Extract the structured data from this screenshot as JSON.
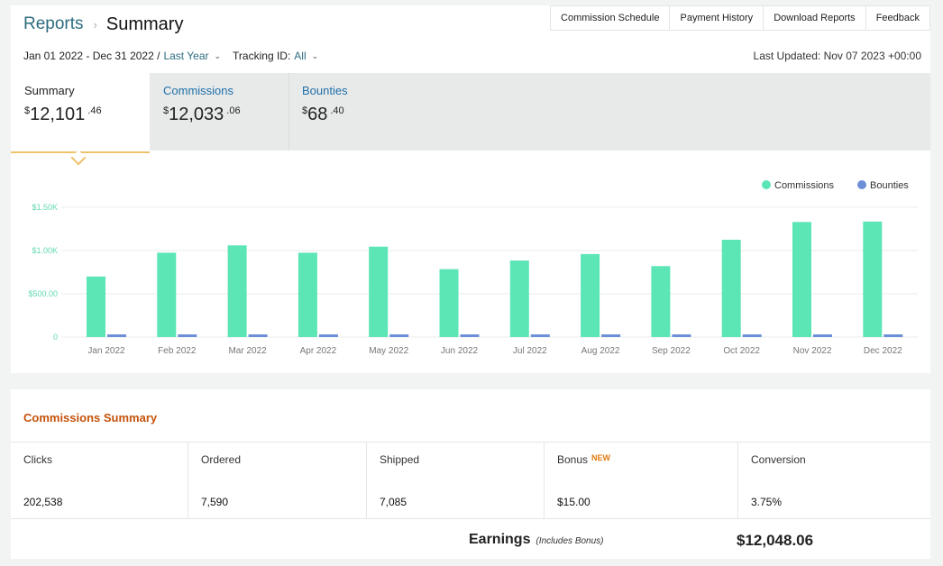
{
  "breadcrumb": {
    "parent": "Reports",
    "separator": "›",
    "current": "Summary"
  },
  "toolbar": {
    "buttons": [
      "Commission Schedule",
      "Payment History",
      "Download Reports",
      "Feedback"
    ]
  },
  "filters": {
    "date_range": "Jan 01 2022 - Dec 31 2022 /",
    "period": "Last Year",
    "tracking_label": "Tracking ID:",
    "tracking_value": "All"
  },
  "last_updated": "Last Updated: Nov 07 2023 +00:00",
  "tabs": [
    {
      "title": "Summary",
      "amount_major": "12,101",
      "amount_minor": ".46",
      "currency": "$",
      "active": true
    },
    {
      "title": "Commissions",
      "amount_major": "12,033",
      "amount_minor": ".06",
      "currency": "$",
      "active": false
    },
    {
      "title": "Bounties",
      "amount_major": "68",
      "amount_minor": ".40",
      "currency": "$",
      "active": false
    }
  ],
  "chart_data": {
    "type": "bar",
    "categories": [
      "Jan 2022",
      "Feb 2022",
      "Mar 2022",
      "Apr 2022",
      "May 2022",
      "Jun 2022",
      "Jul 2022",
      "Aug 2022",
      "Sep 2022",
      "Oct 2022",
      "Nov 2022",
      "Dec 2022"
    ],
    "series": [
      {
        "name": "Commissions",
        "color": "#5ce6b6",
        "values": [
          700,
          975,
          1060,
          975,
          1045,
          785,
          885,
          960,
          820,
          1125,
          1330,
          1335
        ]
      },
      {
        "name": "Bounties",
        "color": "#6c8fd8",
        "values": [
          5,
          8,
          6,
          6,
          5,
          5,
          6,
          6,
          5,
          6,
          6,
          5
        ]
      }
    ],
    "yticks": [
      {
        "value": 0,
        "label": "0"
      },
      {
        "value": 500,
        "label": "$500.00"
      },
      {
        "value": 1000,
        "label": "$1.00K"
      },
      {
        "value": 1500,
        "label": "$1.50K"
      }
    ],
    "ylim": [
      0,
      1500
    ],
    "grid": true,
    "legend": "top-right"
  },
  "commissions_summary": {
    "title": "Commissions Summary",
    "metrics": [
      {
        "label": "Clicks",
        "value": "202,538"
      },
      {
        "label": "Ordered",
        "value": "7,590"
      },
      {
        "label": "Shipped",
        "value": "7,085"
      },
      {
        "label": "Bonus",
        "badge": "NEW",
        "value": "$15.00"
      },
      {
        "label": "Conversion",
        "value": "3.75%"
      }
    ],
    "earnings_label": "Earnings",
    "earnings_note": "(Includes Bonus)",
    "earnings_value": "$12,048.06"
  }
}
